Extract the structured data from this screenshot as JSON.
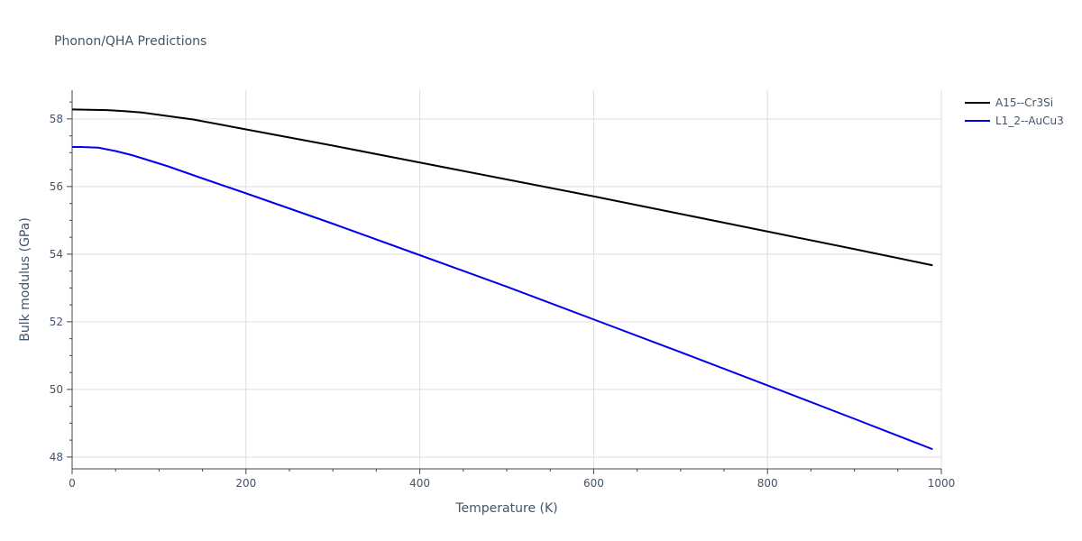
{
  "chart_data": {
    "type": "line",
    "title": "Phonon/QHA Predictions",
    "xlabel": "Temperature (K)",
    "ylabel": "Bulk modulus (GPa)",
    "xlim": [
      0,
      1000
    ],
    "ylim": [
      47.65,
      58.85
    ],
    "x_ticks": [
      0,
      200,
      400,
      600,
      800,
      1000
    ],
    "x_tick_labels": [
      "0",
      "200",
      "400",
      "600",
      "800",
      "1000"
    ],
    "y_ticks": [
      48,
      50,
      52,
      54,
      56,
      58
    ],
    "y_tick_labels": [
      "48",
      "50",
      "52",
      "54",
      "56",
      "58"
    ],
    "grid": true,
    "legend_position": "top-right",
    "series": [
      {
        "name": "A15--Cr3Si",
        "color": "#000000",
        "x": [
          0,
          20,
          40,
          60,
          80,
          100,
          140,
          200,
          300,
          400,
          500,
          600,
          700,
          800,
          900,
          990
        ],
        "y": [
          58.28,
          58.27,
          58.26,
          58.23,
          58.19,
          58.12,
          57.98,
          57.69,
          57.21,
          56.71,
          56.21,
          55.71,
          55.19,
          54.67,
          54.15,
          53.67
        ]
      },
      {
        "name": "L1_2--AuCu3",
        "color": "#0000ee",
        "x": [
          0,
          10,
          30,
          50,
          70,
          90,
          110,
          150,
          200,
          300,
          400,
          500,
          600,
          700,
          800,
          900,
          990
        ],
        "y": [
          57.17,
          57.17,
          57.15,
          57.05,
          56.92,
          56.76,
          56.6,
          56.24,
          55.8,
          54.9,
          53.97,
          53.04,
          52.07,
          51.1,
          50.12,
          49.13,
          48.23
        ]
      }
    ]
  }
}
